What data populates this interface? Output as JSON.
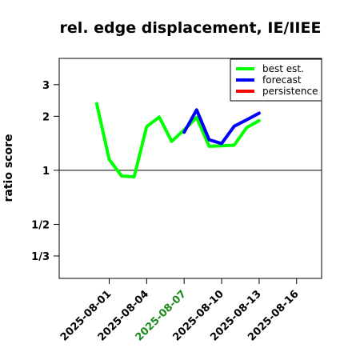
{
  "chart_data": {
    "type": "line",
    "title": "rel. edge displacement, IE/IIEE",
    "ylabel": "ratio score",
    "xlabel": "",
    "y_scale": "log",
    "y_ticks": [
      {
        "value": 3,
        "label": "3"
      },
      {
        "value": 2,
        "label": "2"
      },
      {
        "value": 1,
        "label": "1"
      },
      {
        "value": 0.5,
        "label": "1/2"
      },
      {
        "value": 0.3333,
        "label": "1/3"
      }
    ],
    "x_ticks": [
      {
        "date": "2025-08-01",
        "label": "2025-08-01",
        "color": "#000000"
      },
      {
        "date": "2025-08-04",
        "label": "2025-08-04",
        "color": "#000000"
      },
      {
        "date": "2025-08-07",
        "label": "2025-08-07",
        "color": "#1a8a1a"
      },
      {
        "date": "2025-08-10",
        "label": "2025-08-10",
        "color": "#000000"
      },
      {
        "date": "2025-08-13",
        "label": "2025-08-13",
        "color": "#000000"
      },
      {
        "date": "2025-08-16",
        "label": "2025-08-16",
        "color": "#000000"
      }
    ],
    "xlim": [
      "2025-07-28",
      "2025-08-18"
    ],
    "ylim": [
      0.25,
      4.2
    ],
    "reference_line": 1,
    "legend_position": "top-right",
    "series": [
      {
        "name": "best est.",
        "color": "#00ff00",
        "points": [
          [
            "2025-07-31",
            2.35
          ],
          [
            "2025-08-01",
            1.15
          ],
          [
            "2025-08-02",
            0.93
          ],
          [
            "2025-08-03",
            0.92
          ],
          [
            "2025-08-04",
            1.75
          ],
          [
            "2025-08-05",
            1.98
          ],
          [
            "2025-08-06",
            1.45
          ],
          [
            "2025-08-07",
            1.68
          ],
          [
            "2025-08-08",
            1.97
          ],
          [
            "2025-08-09",
            1.36
          ],
          [
            "2025-08-10",
            1.37
          ],
          [
            "2025-08-11",
            1.38
          ],
          [
            "2025-08-12",
            1.73
          ],
          [
            "2025-08-13",
            1.89
          ]
        ]
      },
      {
        "name": "forecast",
        "color": "#0000ff",
        "points": [
          [
            "2025-08-07",
            1.63
          ],
          [
            "2025-08-08",
            2.17
          ],
          [
            "2025-08-09",
            1.48
          ],
          [
            "2025-08-10",
            1.41
          ],
          [
            "2025-08-11",
            1.76
          ],
          [
            "2025-08-12",
            1.91
          ],
          [
            "2025-08-13",
            2.08
          ]
        ]
      },
      {
        "name": "persistence",
        "color": "#ff0000",
        "points": []
      }
    ]
  }
}
